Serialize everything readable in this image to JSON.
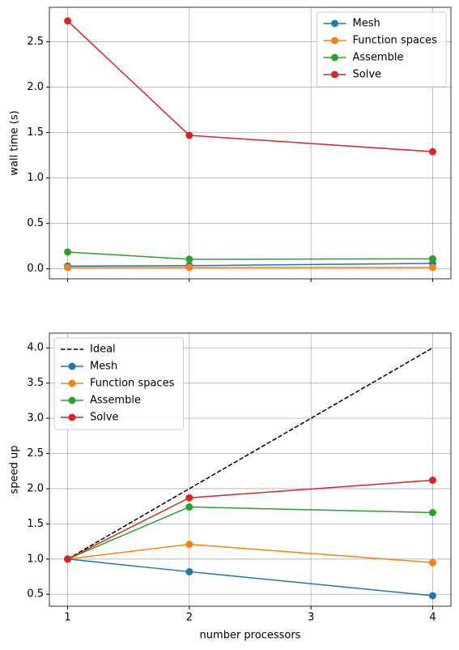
{
  "chart_data": [
    {
      "type": "line",
      "ylabel": "wall time (s)",
      "x": [
        1,
        2,
        4
      ],
      "xlim": [
        0.85,
        4.15
      ],
      "xticks": [
        1,
        2,
        3,
        4
      ],
      "show_xtick_labels": false,
      "ylim": [
        -0.11,
        2.88
      ],
      "yticks": [
        0.0,
        0.5,
        1.0,
        1.5,
        2.0,
        2.5
      ],
      "grid": true,
      "legend": "upper-right",
      "series": [
        {
          "name": "Mesh",
          "color": "#1f77b4",
          "marker": "o",
          "linestyle": "solid",
          "values": [
            0.03,
            0.035,
            0.06
          ]
        },
        {
          "name": "Function spaces",
          "color": "#ff7f0e",
          "marker": "o",
          "linestyle": "solid",
          "values": [
            0.015,
            0.015,
            0.015
          ]
        },
        {
          "name": "Assemble",
          "color": "#2ca02c",
          "marker": "o",
          "linestyle": "solid",
          "values": [
            0.185,
            0.105,
            0.11
          ]
        },
        {
          "name": "Solve",
          "color": "#d62728",
          "marker": "o",
          "linestyle": "solid",
          "values": [
            2.73,
            1.47,
            1.29
          ]
        }
      ]
    },
    {
      "type": "line",
      "ylabel": "speed up",
      "xlabel": "number processors",
      "x": [
        1,
        2,
        4
      ],
      "xlim": [
        0.85,
        4.15
      ],
      "xticks": [
        1,
        2,
        3,
        4
      ],
      "show_xtick_labels": true,
      "ylim": [
        0.33,
        4.21
      ],
      "yticks": [
        0.5,
        1.0,
        1.5,
        2.0,
        2.5,
        3.0,
        3.5,
        4.0
      ],
      "grid": true,
      "legend": "upper-left",
      "series": [
        {
          "name": "Ideal",
          "color": "#000000",
          "marker": "none",
          "linestyle": "dashed",
          "values": [
            1,
            2,
            4
          ]
        },
        {
          "name": "Mesh",
          "color": "#1f77b4",
          "marker": "o",
          "linestyle": "solid",
          "values": [
            1.0,
            0.82,
            0.48
          ]
        },
        {
          "name": "Function spaces",
          "color": "#ff7f0e",
          "marker": "o",
          "linestyle": "solid",
          "values": [
            1.0,
            1.21,
            0.95
          ]
        },
        {
          "name": "Assemble",
          "color": "#2ca02c",
          "marker": "o",
          "linestyle": "solid",
          "values": [
            1.0,
            1.74,
            1.66
          ]
        },
        {
          "name": "Solve",
          "color": "#d62728",
          "marker": "o",
          "linestyle": "solid",
          "values": [
            1.0,
            1.87,
            2.12
          ]
        }
      ]
    }
  ]
}
